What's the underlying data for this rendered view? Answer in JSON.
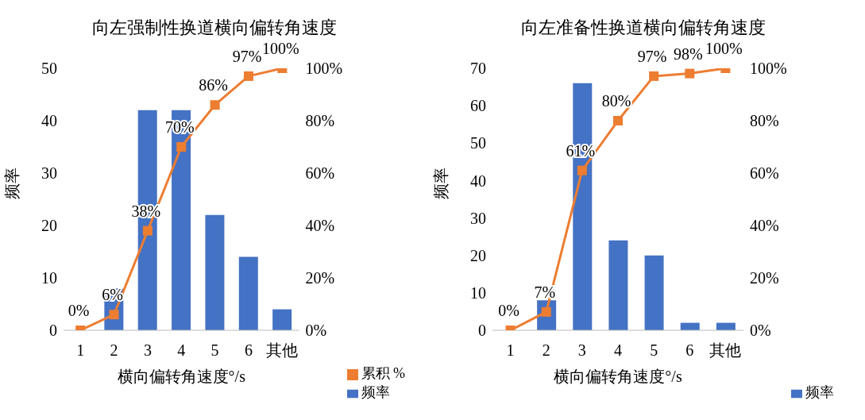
{
  "chart_data": [
    {
      "type": "bar",
      "title": "向左强制性换道横向偏转角速度",
      "xlabel": "横向偏转角速度°/s",
      "ylabel": "频率",
      "categories": [
        "1",
        "2",
        "3",
        "4",
        "5",
        "6",
        "其他"
      ],
      "series": [
        {
          "name": "频率",
          "color": "#4472c4",
          "values": [
            null,
            8,
            42,
            42,
            22,
            14,
            4
          ]
        },
        {
          "name": "累积 %",
          "type": "line",
          "axis": "y2",
          "color": "#ed7d31",
          "values": [
            0,
            6,
            38,
            70,
            86,
            97,
            100
          ],
          "value_labels": [
            "0%",
            "6%",
            "38%",
            "70%",
            "86%",
            "97%",
            "100%"
          ]
        }
      ],
      "ylim": [
        0,
        50
      ],
      "yticks": [
        0,
        10,
        20,
        30,
        40,
        50
      ],
      "y2lim": [
        0,
        100
      ],
      "y2ticks": [
        {
          "value": 0,
          "label": "0%"
        },
        {
          "value": 20,
          "label": "20%"
        },
        {
          "value": 40,
          "label": "40%"
        },
        {
          "value": 60,
          "label": "60%"
        },
        {
          "value": 80,
          "label": "80%"
        },
        {
          "value": 100,
          "label": "100%"
        }
      ],
      "marker": "square",
      "legend": "bottom right",
      "grid": false
    },
    {
      "type": "bar",
      "title": "向左准备性换道横向偏转角速度",
      "xlabel": "横向偏转角速度°/s",
      "ylabel": "频率",
      "categories": [
        "1",
        "2",
        "3",
        "4",
        "5",
        "6",
        "其他"
      ],
      "series": [
        {
          "name": "频率",
          "color": "#4472c4",
          "values": [
            null,
            8,
            66,
            24,
            20,
            2,
            2
          ]
        },
        {
          "type": "line",
          "axis": "y2",
          "color": "#ed7d31",
          "values": [
            0,
            7,
            61,
            80,
            97,
            98,
            100
          ],
          "value_labels": [
            "0%",
            "7%",
            "61%",
            "80%",
            "97%",
            "98%",
            "100%"
          ]
        }
      ],
      "ylim": [
        0,
        70
      ],
      "yticks": [
        0,
        10,
        20,
        30,
        40,
        50,
        60,
        70
      ],
      "y2lim": [
        0,
        100
      ],
      "y2ticks": [
        {
          "value": 0,
          "label": "0%"
        },
        {
          "value": 20,
          "label": "20%"
        },
        {
          "value": 40,
          "label": "40%"
        },
        {
          "value": 60,
          "label": "60%"
        },
        {
          "value": 80,
          "label": "80%"
        },
        {
          "value": 100,
          "label": "100%"
        }
      ],
      "marker": "square",
      "legend": "bottom right",
      "grid": false
    }
  ]
}
